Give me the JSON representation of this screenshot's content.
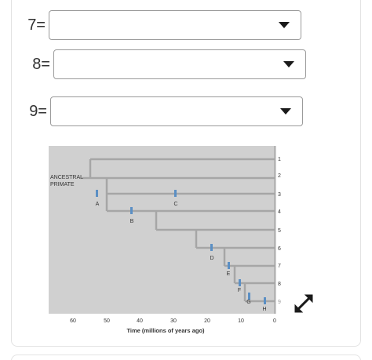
{
  "questions": [
    {
      "label": "7=",
      "value": ""
    },
    {
      "label": "8=",
      "value": ""
    },
    {
      "label": "9=",
      "value": ""
    }
  ],
  "figure": {
    "root_label_line1": "ANCESTRAL",
    "root_label_line2": "PRIMATE",
    "tips": [
      "1",
      "2",
      "3",
      "4",
      "5",
      "6",
      "7",
      "8",
      "9"
    ],
    "events": [
      "A",
      "B",
      "C",
      "D",
      "E",
      "F",
      "G",
      "H"
    ],
    "axis_ticks": [
      "60",
      "50",
      "40",
      "30",
      "20",
      "10",
      "0"
    ],
    "axis_title": "Time (millions of years ago)"
  },
  "colors": {
    "figure_bg": "#d0d0d0",
    "branch": "#a6a6a6",
    "marker": "#5b8fc4"
  },
  "icons": {
    "expand": "expand-diagonal-arrows-icon",
    "caret": "chevron-down-icon"
  }
}
